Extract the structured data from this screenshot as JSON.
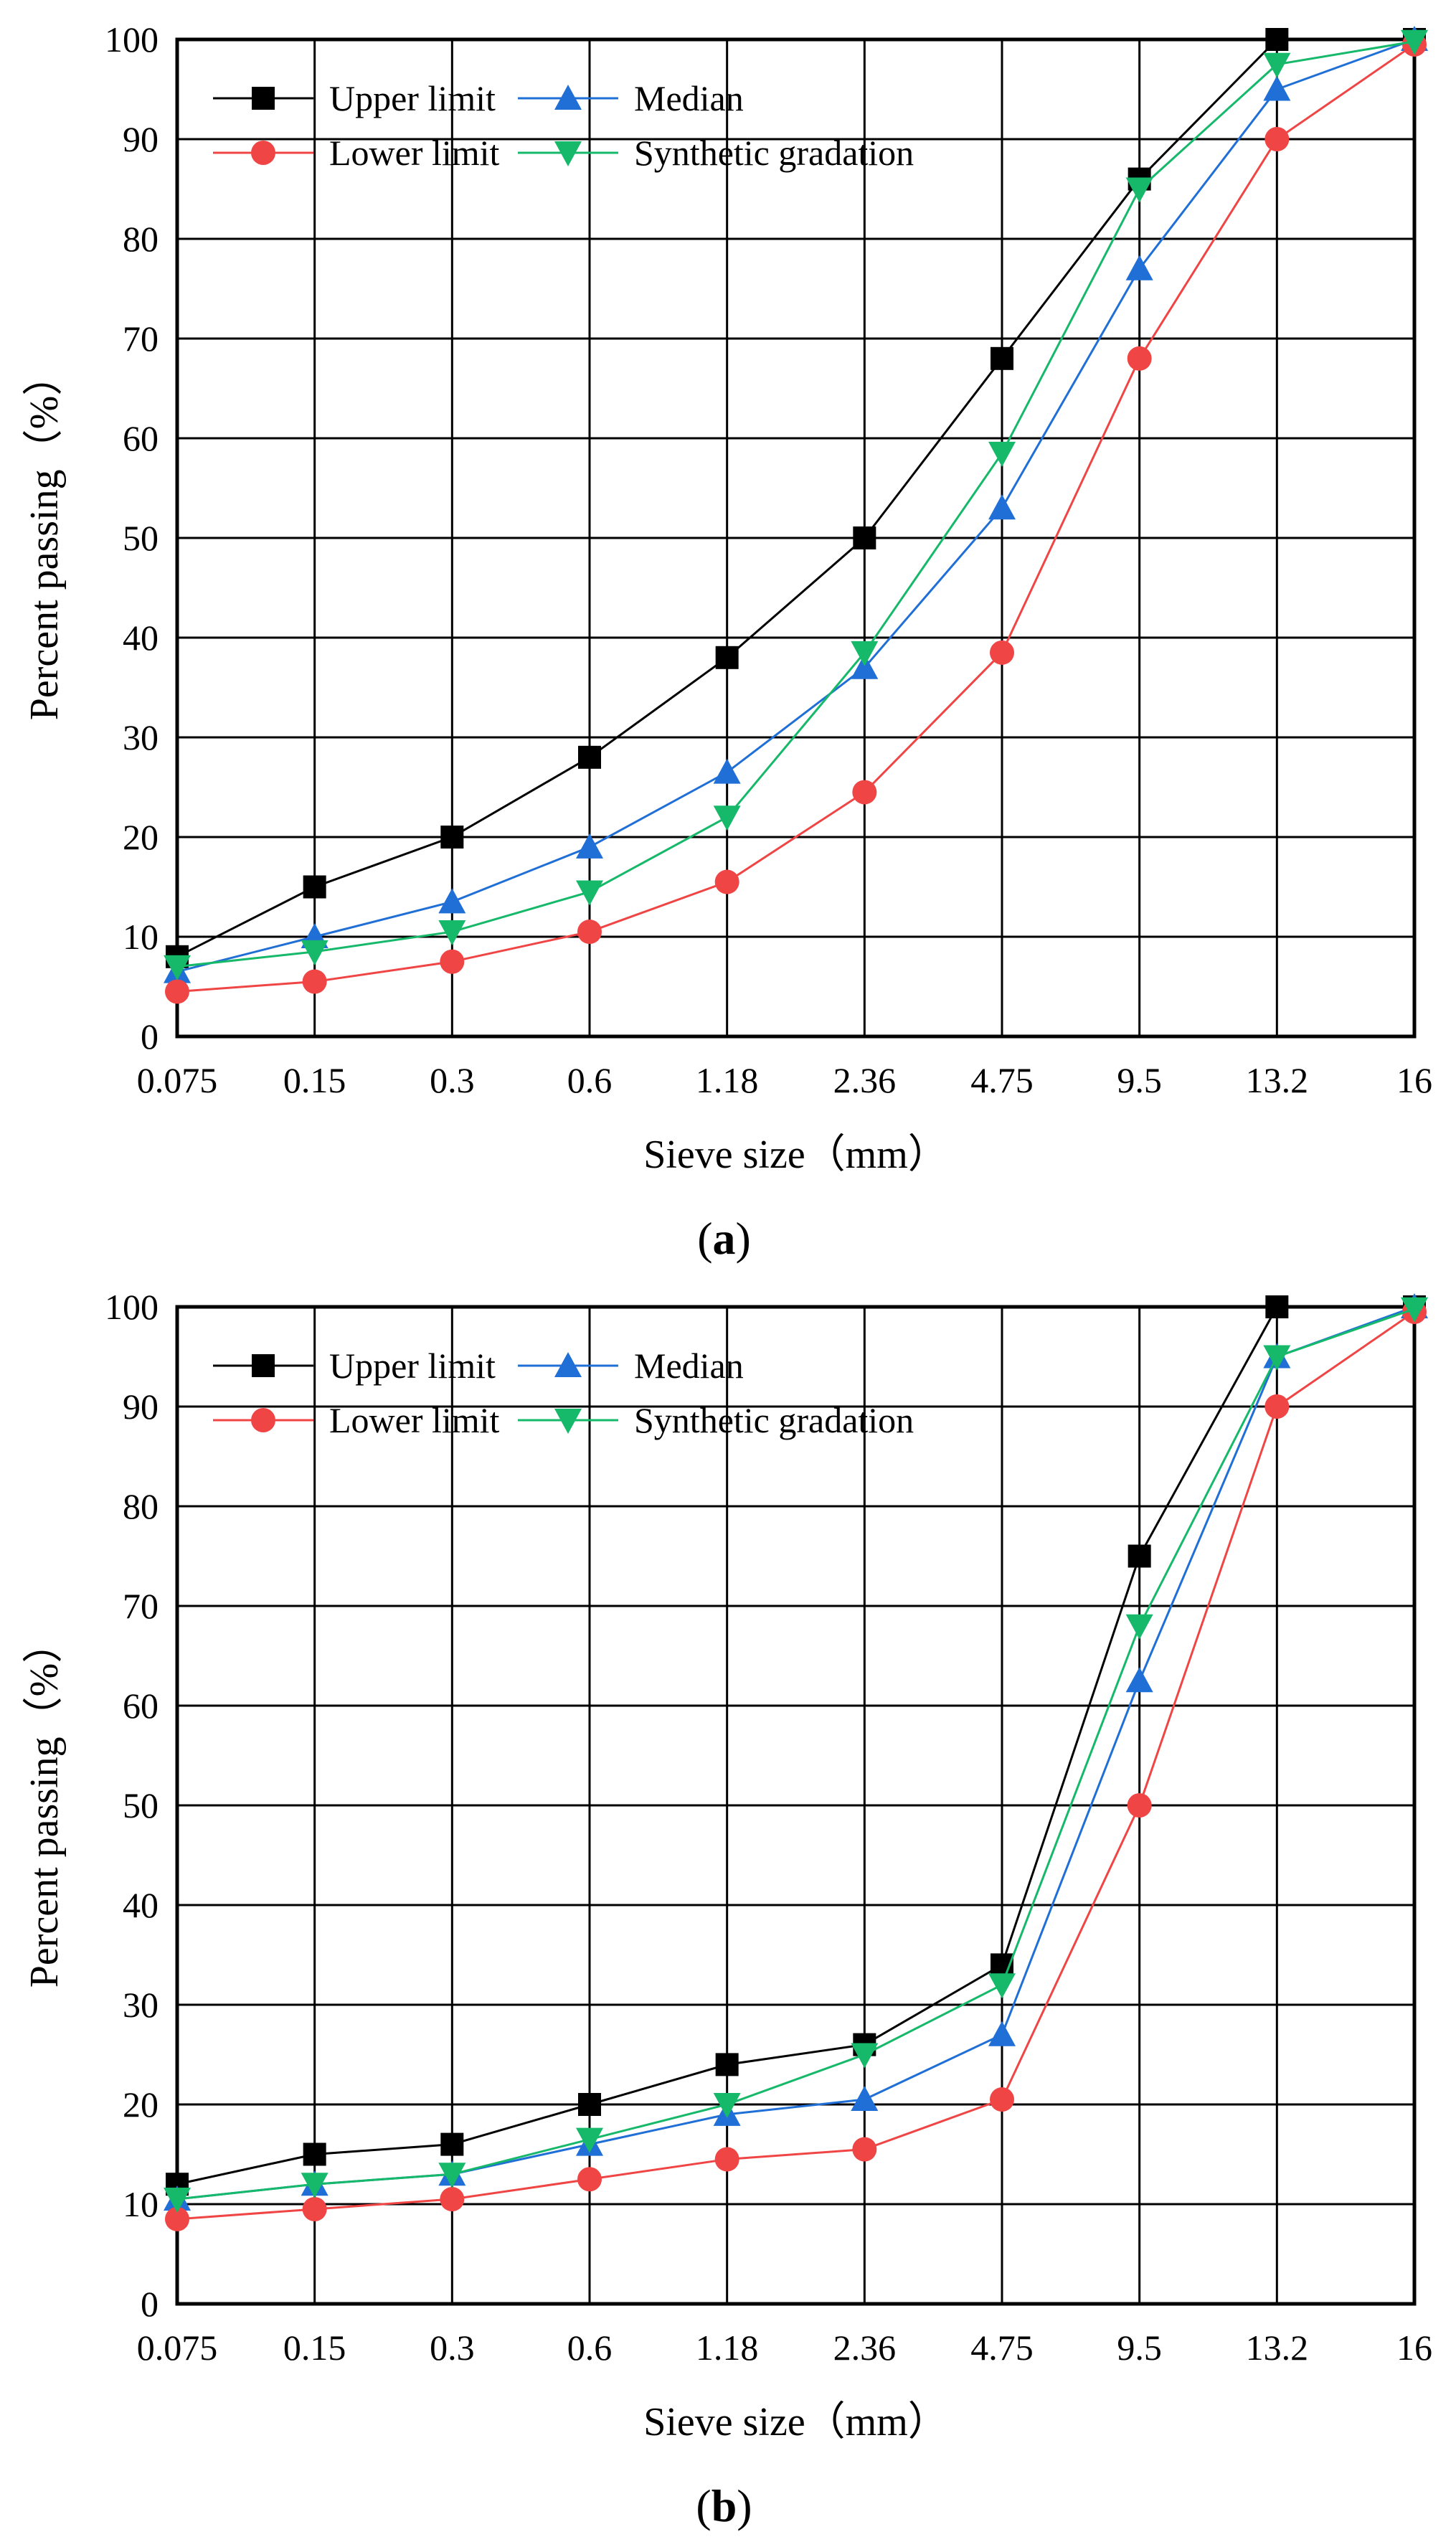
{
  "chart_data": [
    {
      "type": "line",
      "panel_label": "a",
      "title": "",
      "xlabel": "Sieve size（mm）",
      "ylabel": "Percent passing（%）",
      "categories": [
        "0.075",
        "0.15",
        "0.3",
        "0.6",
        "1.18",
        "2.36",
        "4.75",
        "9.5",
        "13.2",
        "16"
      ],
      "ylim": [
        0,
        100
      ],
      "yticks": [
        0,
        10,
        20,
        30,
        40,
        50,
        60,
        70,
        80,
        90,
        100
      ],
      "grid": true,
      "legend": "top-left",
      "series": [
        {
          "name": "Upper limit",
          "marker": "square",
          "color": "#000000",
          "values": [
            8,
            15,
            20,
            28,
            38,
            50,
            68,
            86,
            100,
            100
          ]
        },
        {
          "name": "Median",
          "marker": "triangle-up",
          "color": "#1f6fd6",
          "values": [
            6.5,
            10,
            13.5,
            19,
            26.5,
            37,
            53,
            77,
            95,
            100
          ]
        },
        {
          "name": "Lower limit",
          "marker": "circle",
          "color": "#f04545",
          "values": [
            4.5,
            5.5,
            7.5,
            10.5,
            15.5,
            24.5,
            38.5,
            68,
            90,
            99.5
          ]
        },
        {
          "name": "Synthetic gradation",
          "marker": "triangle-down",
          "color": "#16b86a",
          "values": [
            7,
            8.5,
            10.5,
            14.5,
            22,
            38.5,
            58.5,
            85,
            97.5,
            99.8
          ]
        }
      ]
    },
    {
      "type": "line",
      "panel_label": "b",
      "title": "",
      "xlabel": "Sieve size（mm）",
      "ylabel": "Percent passing（%）",
      "categories": [
        "0.075",
        "0.15",
        "0.3",
        "0.6",
        "1.18",
        "2.36",
        "4.75",
        "9.5",
        "13.2",
        "16"
      ],
      "ylim": [
        0,
        100
      ],
      "yticks": [
        0,
        10,
        20,
        30,
        40,
        50,
        60,
        70,
        80,
        90,
        100
      ],
      "grid": true,
      "legend": "top-left",
      "series": [
        {
          "name": "Upper limit",
          "marker": "square",
          "color": "#000000",
          "values": [
            12,
            15,
            16,
            20,
            24,
            26,
            34,
            75,
            100,
            100
          ]
        },
        {
          "name": "Median",
          "marker": "triangle-up",
          "color": "#1f6fd6",
          "values": [
            10.5,
            12,
            13,
            16,
            19,
            20.5,
            27,
            62.5,
            95,
            100
          ]
        },
        {
          "name": "Lower limit",
          "marker": "circle",
          "color": "#f04545",
          "values": [
            8.5,
            9.5,
            10.5,
            12.5,
            14.5,
            15.5,
            20.5,
            50,
            90,
            99.5
          ]
        },
        {
          "name": "Synthetic gradation",
          "marker": "triangle-down",
          "color": "#16b86a",
          "values": [
            10.5,
            12,
            13,
            16.5,
            20,
            25,
            32,
            68,
            95,
            99.8
          ]
        }
      ]
    }
  ]
}
